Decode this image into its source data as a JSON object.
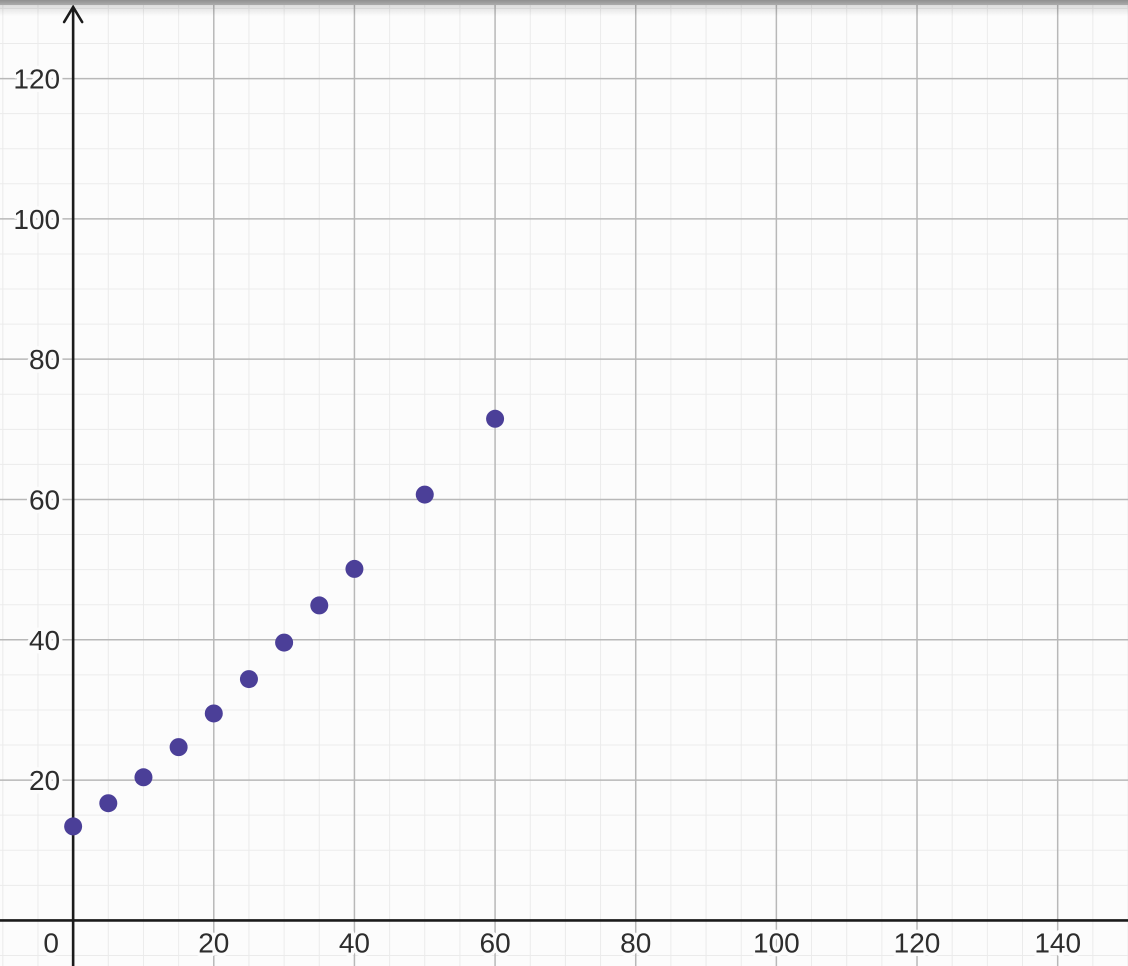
{
  "chart_data": {
    "type": "scatter",
    "title": "",
    "xlabel": "",
    "ylabel": "",
    "grid": true,
    "legend": false,
    "series": [
      {
        "name": "scatter-points",
        "color": "#4b3f98",
        "marker_radius": 9,
        "points": [
          [
            0,
            13.4
          ],
          [
            5,
            16.7
          ],
          [
            10,
            20.4
          ],
          [
            15,
            24.7
          ],
          [
            20,
            29.5
          ],
          [
            25,
            34.4
          ],
          [
            30,
            39.6
          ],
          [
            35,
            44.9
          ],
          [
            40,
            50.1
          ],
          [
            50,
            60.7
          ],
          [
            60,
            71.5
          ]
        ]
      }
    ],
    "x_axis": {
      "min": -10.4,
      "max": 150,
      "major_tick": 20,
      "minor_tick": 5,
      "tick_values": [
        0,
        20,
        40,
        60,
        80,
        100,
        120,
        140
      ],
      "tick_labels": [
        "0",
        "20",
        "40",
        "60",
        "80",
        "100",
        "120",
        "140"
      ],
      "zero_label_dx": -22
    },
    "y_axis": {
      "min": -6.5,
      "max": 131.2,
      "major_tick": 20,
      "minor_tick": 5,
      "tick_values": [
        20,
        40,
        60,
        80,
        100,
        120
      ],
      "tick_labels": [
        "20",
        "40",
        "60",
        "80",
        "100",
        "120"
      ]
    }
  },
  "style": {
    "background_color": "#fcfcfc",
    "minor_grid_color": "#ebebeb",
    "major_grid_color": "#b8b8b8",
    "axis_color": "#1b1b1b",
    "tick_label_color": "#2d2d2d",
    "point_color": "#4b3f98",
    "top_edge_color": "#9a9a9a"
  }
}
